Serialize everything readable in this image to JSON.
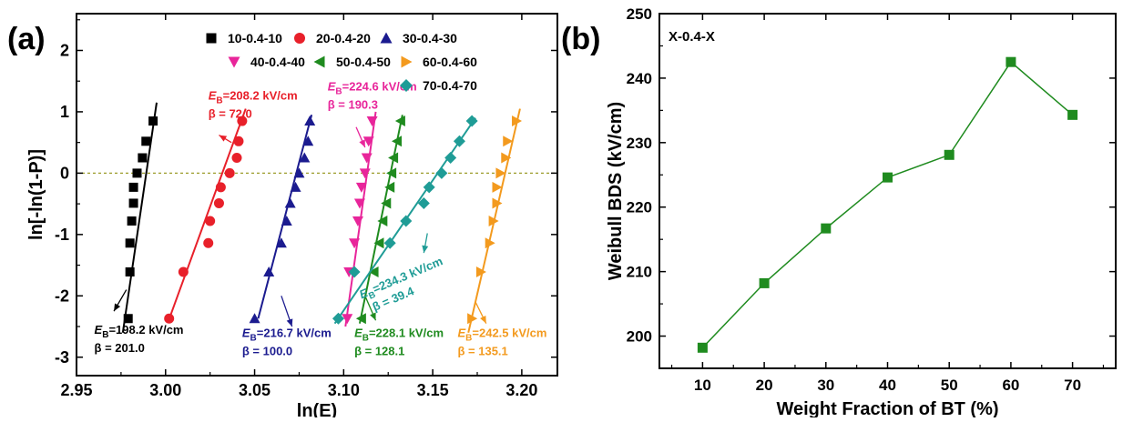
{
  "chart_data": [
    {
      "panel_label": "(a)",
      "type": "scatter",
      "xlabel": "ln(E)",
      "ylabel": "ln[-ln(1-P)]",
      "xlim": [
        2.95,
        3.22
      ],
      "ylim": [
        -3.3,
        2.6
      ],
      "xticks": [
        2.95,
        3.0,
        3.05,
        3.1,
        3.15,
        3.2
      ],
      "xtick_labels": [
        "2.95",
        "3.00",
        "3.05",
        "3.10",
        "3.15",
        "3.20"
      ],
      "yticks": [
        -3,
        -2,
        -1,
        0,
        1,
        2
      ],
      "ytick_labels": [
        "-3",
        "-2",
        "-1",
        "0",
        "1",
        "2"
      ],
      "reference_line_y": 0,
      "legend_position": "top-right",
      "series": [
        {
          "name": "10-0.4-10",
          "color": "#000000",
          "marker": "square",
          "x": [
            2.979,
            2.98,
            2.98,
            2.981,
            2.982,
            2.982,
            2.984,
            2.987,
            2.989,
            2.993
          ],
          "y": [
            -2.37,
            -1.61,
            -1.14,
            -0.78,
            -0.49,
            -0.23,
            0.0,
            0.25,
            0.52,
            0.85
          ],
          "fit": [
            [
              2.976,
              -2.6
            ],
            [
              2.995,
              1.15
            ]
          ],
          "annotation": {
            "eb": "=198.2 kV/cm",
            "beta": "β = 201.0"
          }
        },
        {
          "name": "20-0.4-20",
          "color": "#e8202a",
          "marker": "circle",
          "x": [
            3.002,
            3.01,
            3.024,
            3.025,
            3.03,
            3.031,
            3.036,
            3.04,
            3.041,
            3.043
          ],
          "y": [
            -2.37,
            -1.61,
            -1.14,
            -0.78,
            -0.49,
            -0.23,
            0.0,
            0.25,
            0.52,
            0.85
          ],
          "fit": [
            [
              3.003,
              -2.3
            ],
            [
              3.045,
              1.05
            ]
          ],
          "annotation": {
            "eb": "=208.2 kV/cm",
            "beta": "β = 72.0"
          }
        },
        {
          "name": "30-0.4-30",
          "color": "#1b1b8f",
          "marker": "triangle-up",
          "x": [
            3.05,
            3.058,
            3.065,
            3.068,
            3.07,
            3.073,
            3.075,
            3.078,
            3.08,
            3.081
          ],
          "y": [
            -2.37,
            -1.61,
            -1.14,
            -0.78,
            -0.49,
            -0.23,
            0.0,
            0.25,
            0.52,
            0.85
          ],
          "fit": [
            [
              3.052,
              -2.37
            ],
            [
              3.082,
              0.95
            ]
          ],
          "annotation": {
            "eb": "=216.7 kV/cm",
            "beta": "β = 100.0"
          }
        },
        {
          "name": "40-0.4-40",
          "color": "#e8259a",
          "marker": "triangle-down",
          "x": [
            3.102,
            3.103,
            3.106,
            3.108,
            3.109,
            3.11,
            3.112,
            3.113,
            3.114,
            3.116
          ],
          "y": [
            -2.37,
            -1.61,
            -1.14,
            -0.78,
            -0.49,
            -0.23,
            0.0,
            0.25,
            0.52,
            0.85
          ],
          "fit": [
            [
              3.101,
              -2.5
            ],
            [
              3.118,
              1.0
            ]
          ],
          "annotation": {
            "eb": "=224.6 kV/cm",
            "beta": "β = 190.3"
          }
        },
        {
          "name": "50-0.4-50",
          "color": "#1f8b1f",
          "marker": "triangle-left",
          "x": [
            3.11,
            3.117,
            3.12,
            3.122,
            3.124,
            3.126,
            3.127,
            3.128,
            3.13,
            3.132
          ],
          "y": [
            -2.37,
            -1.61,
            -1.14,
            -0.78,
            -0.49,
            -0.23,
            0.0,
            0.25,
            0.52,
            0.85
          ],
          "fit": [
            [
              3.109,
              -2.45
            ],
            [
              3.133,
              0.95
            ]
          ],
          "annotation": {
            "eb": "=228.1 kV/cm",
            "beta": "β = 128.1"
          }
        },
        {
          "name": "60-0.4-60",
          "color": "#f39a1e",
          "marker": "triangle-right",
          "x": [
            3.172,
            3.177,
            3.182,
            3.184,
            3.186,
            3.186,
            3.188,
            3.191,
            3.192,
            3.197
          ],
          "y": [
            -2.37,
            -1.61,
            -1.14,
            -0.78,
            -0.49,
            -0.23,
            0.0,
            0.25,
            0.52,
            0.85
          ],
          "fit": [
            [
              3.17,
              -2.6
            ],
            [
              3.199,
              1.05
            ]
          ],
          "annotation": {
            "eb": "=242.5 kV/cm",
            "beta": "β = 135.1"
          }
        },
        {
          "name": "70-0.4-70",
          "color": "#1f9c96",
          "marker": "diamond",
          "x": [
            3.097,
            3.106,
            3.126,
            3.135,
            3.145,
            3.148,
            3.155,
            3.16,
            3.165,
            3.172
          ],
          "y": [
            -2.37,
            -1.61,
            -1.14,
            -0.78,
            -0.49,
            -0.23,
            0.0,
            0.25,
            0.52,
            0.85
          ],
          "fit": [
            [
              3.095,
              -2.45
            ],
            [
              3.174,
              0.9
            ]
          ],
          "annotation": {
            "eb": "=234.3 kV/cm",
            "beta": "β = 39.4"
          }
        }
      ]
    },
    {
      "panel_label": "(b)",
      "type": "line",
      "title": "X-0.4-X",
      "xlabel": "Weight Fraction of BT (%)",
      "ylabel": "Weibull BDS (kV/cm)",
      "xlim": [
        3,
        77
      ],
      "ylim": [
        195,
        250
      ],
      "xticks": [
        10,
        20,
        30,
        40,
        50,
        60,
        70
      ],
      "yticks": [
        200,
        210,
        220,
        230,
        240,
        250
      ],
      "color": "#1f8b1f",
      "marker": "square",
      "x": [
        10,
        20,
        30,
        40,
        50,
        60,
        70
      ],
      "y": [
        198.2,
        208.2,
        216.7,
        224.6,
        228.1,
        242.5,
        234.3
      ]
    }
  ]
}
